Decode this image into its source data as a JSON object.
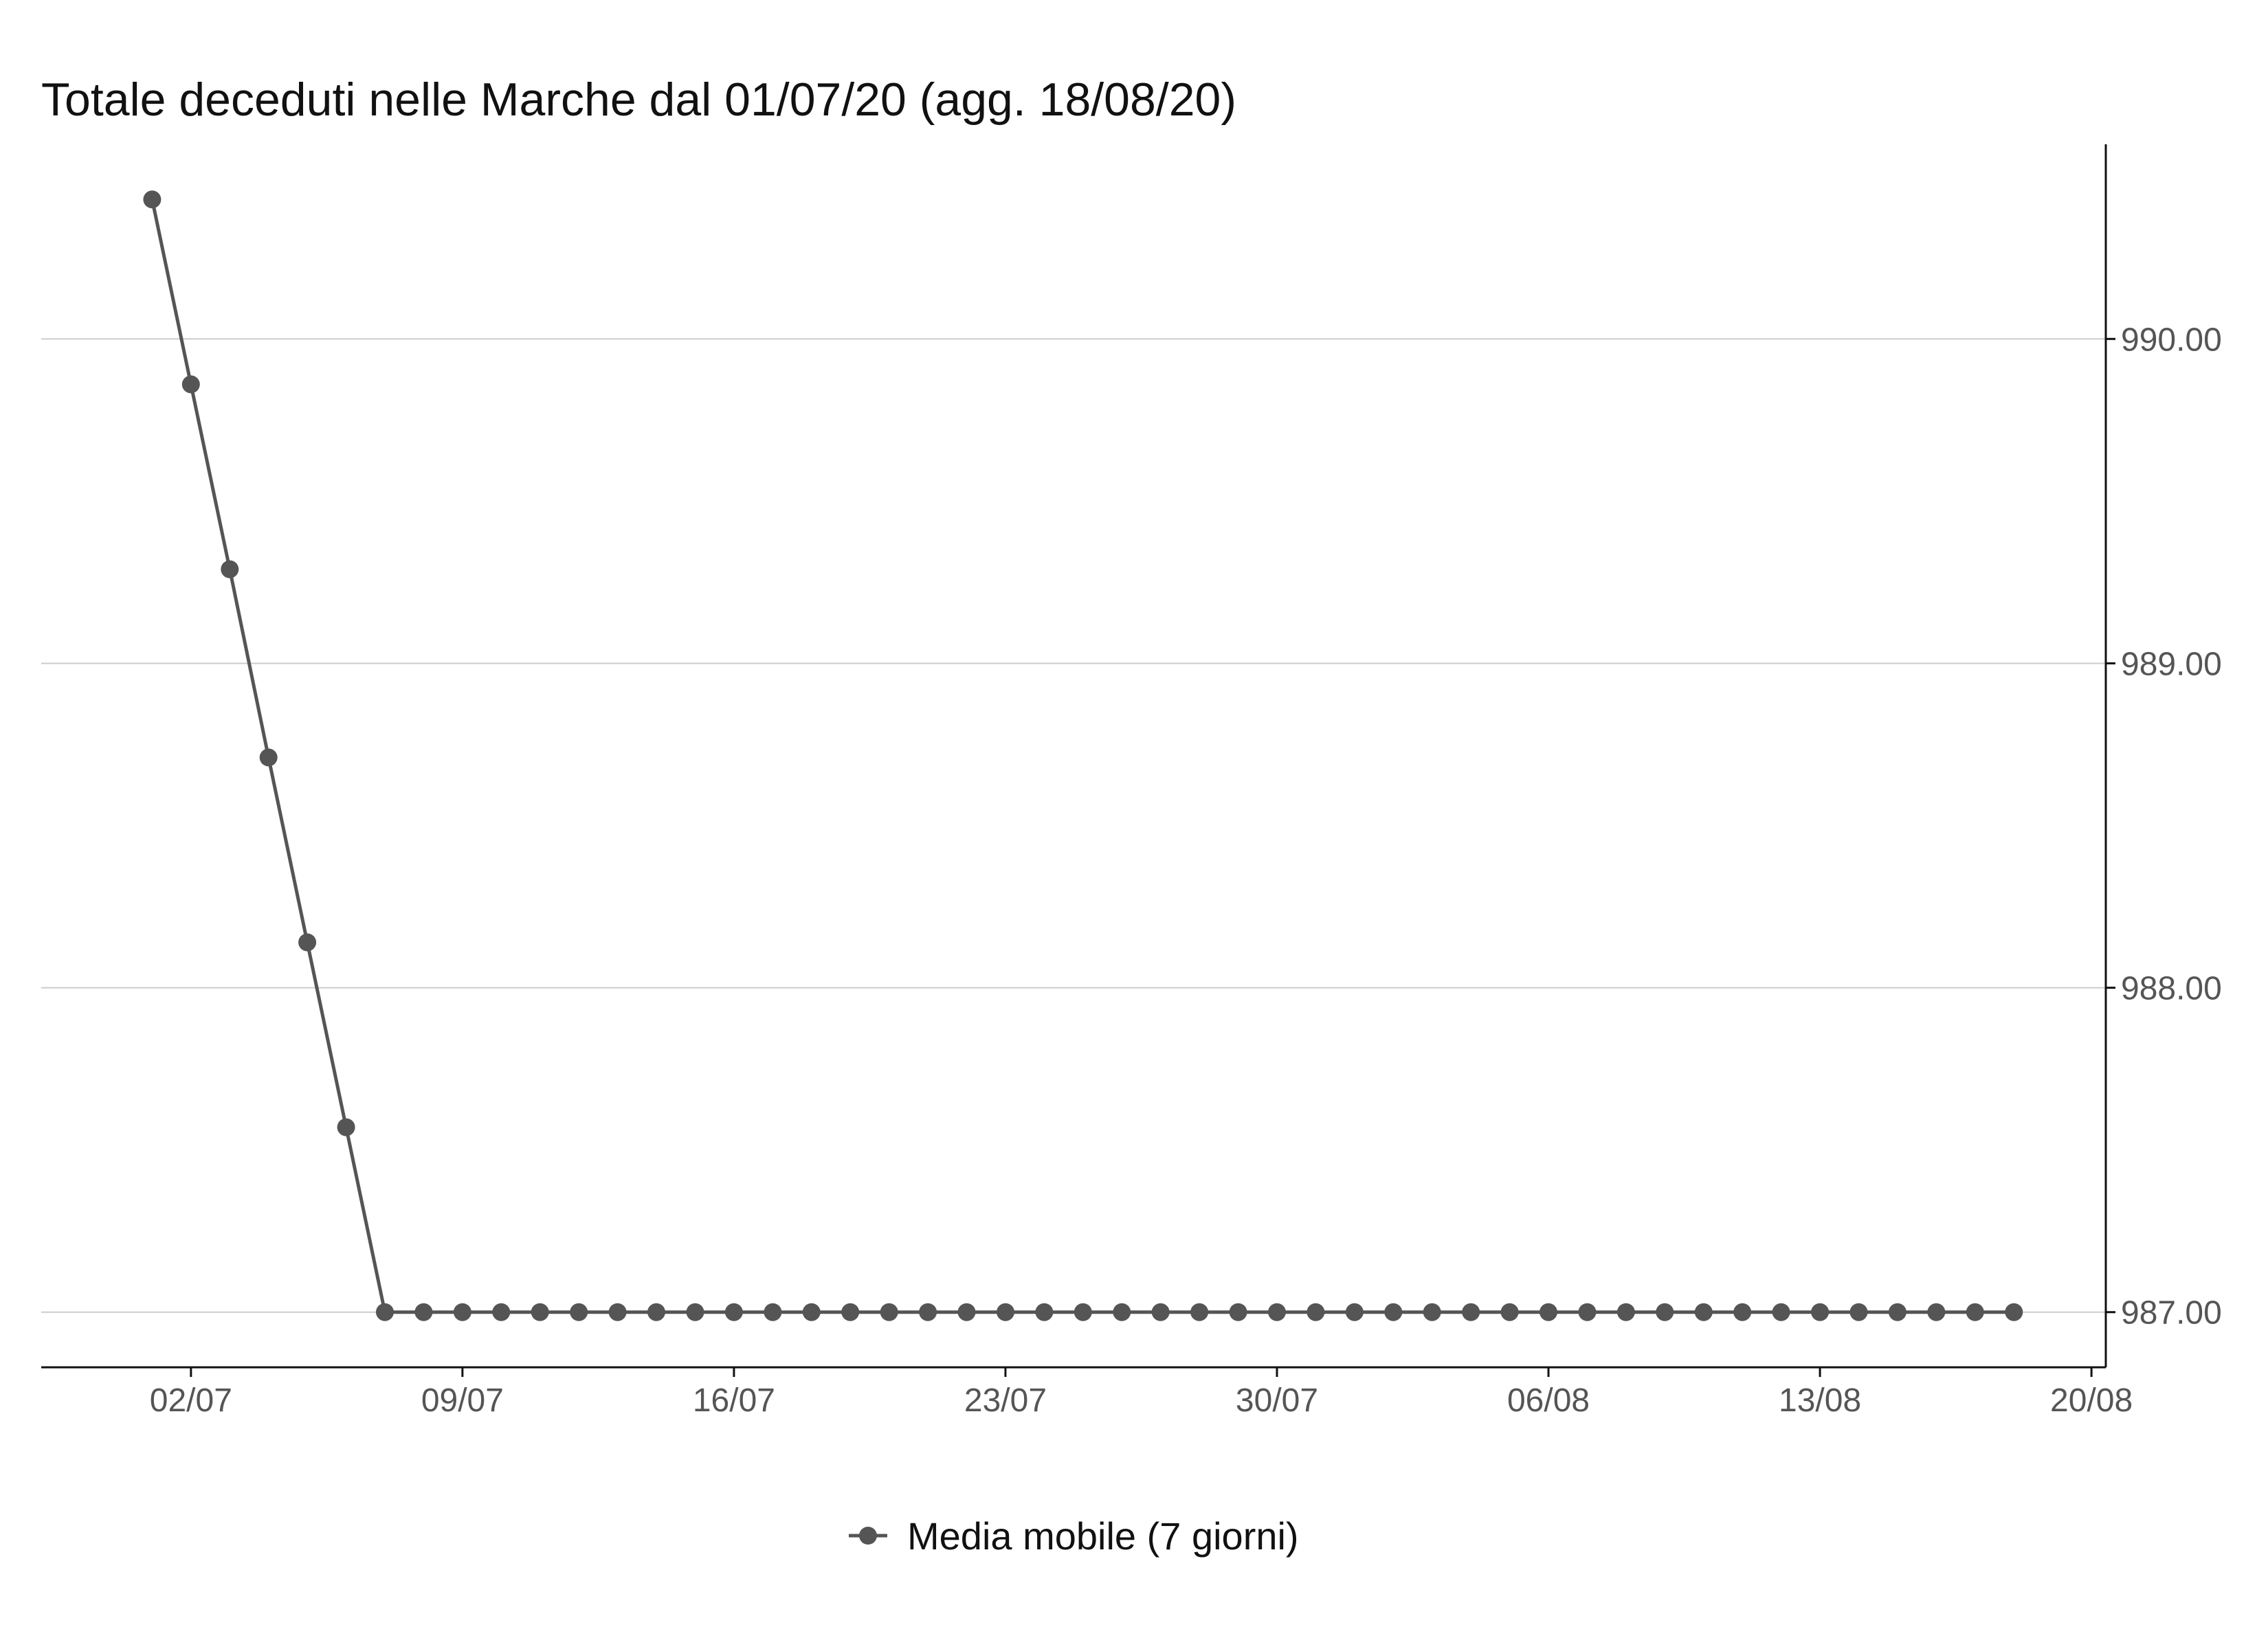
{
  "chart_data": {
    "type": "line",
    "title": "Totale deceduti nelle Marche dal 01/07/20 (agg. 18/08/20)",
    "xlabel": "",
    "ylabel": "",
    "x_start": "01/07",
    "x_end": "18/08",
    "xticks": [
      "02/07",
      "09/07",
      "16/07",
      "23/07",
      "30/07",
      "06/08",
      "13/08",
      "20/08"
    ],
    "yticks": [
      "987.00",
      "988.00",
      "989.00",
      "990.00"
    ],
    "ylim": [
      986.83,
      990.6
    ],
    "y_axis_position": "right",
    "grid": "horizontal",
    "legend_position": "bottom",
    "series": [
      {
        "name": "Media mobile (7 giorni)",
        "color": "#555555",
        "marker": "circle",
        "values": [
          990.43,
          989.86,
          989.29,
          988.71,
          988.14,
          987.57,
          987.0,
          987.0,
          987.0,
          987.0,
          987.0,
          987.0,
          987.0,
          987.0,
          987.0,
          987.0,
          987.0,
          987.0,
          987.0,
          987.0,
          987.0,
          987.0,
          987.0,
          987.0,
          987.0,
          987.0,
          987.0,
          987.0,
          987.0,
          987.0,
          987.0,
          987.0,
          987.0,
          987.0,
          987.0,
          987.0,
          987.0,
          987.0,
          987.0,
          987.0,
          987.0,
          987.0,
          987.0,
          987.0,
          987.0,
          987.0,
          987.0,
          987.0,
          987.0
        ]
      }
    ]
  }
}
